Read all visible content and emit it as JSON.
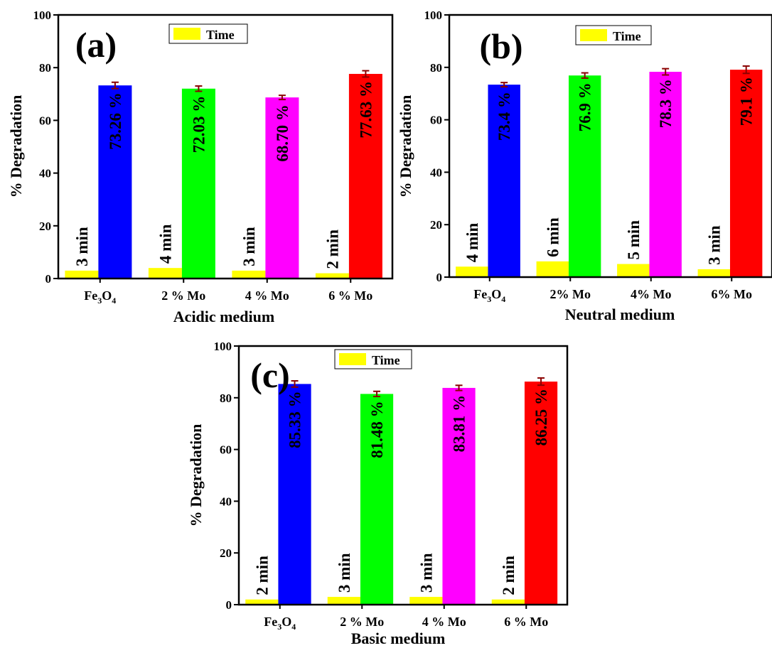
{
  "chart_data": [
    {
      "panel": "(a)",
      "type": "bar",
      "xlabel": "Acidic medium",
      "ylabel": "% Degradation",
      "ylim": [
        0,
        100
      ],
      "yticks": [
        0,
        20,
        40,
        60,
        80,
        100
      ],
      "grid": false,
      "legend": {
        "label": "Time",
        "placement": "top-center"
      },
      "categories": [
        {
          "base": "Fe",
          "sub1": "3",
          "mid": "O",
          "sub2": "4"
        },
        {
          "base": "2 % Mo"
        },
        {
          "base": "4 % Mo"
        },
        {
          "base": "6 % Mo"
        }
      ],
      "series": [
        {
          "name": "Time",
          "color": "#ffff00",
          "values": [
            3,
            4,
            3,
            2
          ],
          "labels": [
            "3 min",
            "4 min",
            "3 min",
            "2 min"
          ]
        },
        {
          "values": [
            73.26,
            72.03,
            68.7,
            77.63
          ],
          "errors": [
            1.2,
            1.0,
            0.8,
            1.2
          ],
          "colors": [
            "#0000ff",
            "#00ff00",
            "#ff00ff",
            "#ff0000"
          ],
          "labels": [
            "73.26 %",
            "72.03 %",
            "68.70 %",
            "77.63 %"
          ]
        }
      ]
    },
    {
      "panel": "(b)",
      "type": "bar",
      "xlabel": "Neutral medium",
      "ylabel": "% Degradation",
      "ylim": [
        0,
        100
      ],
      "yticks": [
        0,
        20,
        40,
        60,
        80,
        100
      ],
      "grid": false,
      "legend": {
        "label": "Time",
        "placement": "top-center"
      },
      "categories": [
        {
          "base": "Fe",
          "sub1": "3",
          "mid": "O",
          "sub2": "4"
        },
        {
          "base": "2% Mo"
        },
        {
          "base": "4% Mo"
        },
        {
          "base": "6% Mo"
        }
      ],
      "series": [
        {
          "name": "Time",
          "color": "#ffff00",
          "values": [
            4,
            6,
            5,
            3
          ],
          "labels": [
            "4 min",
            "6 min",
            "5 min",
            "3 min"
          ]
        },
        {
          "values": [
            73.4,
            76.9,
            78.3,
            79.1
          ],
          "errors": [
            0.8,
            1.0,
            1.2,
            1.4
          ],
          "colors": [
            "#0000ff",
            "#00ff00",
            "#ff00ff",
            "#ff0000"
          ],
          "labels": [
            "73.4 %",
            "76.9 %",
            "78.3 %",
            "79.1 %"
          ]
        }
      ]
    },
    {
      "panel": "(c)",
      "type": "bar",
      "xlabel": "Basic medium",
      "ylabel": "% Degradation",
      "ylim": [
        0,
        100
      ],
      "yticks": [
        0,
        20,
        40,
        60,
        80,
        100
      ],
      "grid": false,
      "legend": {
        "label": "Time",
        "placement": "top-center"
      },
      "categories": [
        {
          "base": "Fe",
          "sub1": "3",
          "mid": "O",
          "sub2": "4"
        },
        {
          "base": "2 % Mo"
        },
        {
          "base": "4 % Mo"
        },
        {
          "base": "6 % Mo"
        }
      ],
      "series": [
        {
          "name": "Time",
          "color": "#ffff00",
          "values": [
            2,
            3,
            3,
            2
          ],
          "labels": [
            "2 min",
            "3 min",
            "3 min",
            "2 min"
          ]
        },
        {
          "values": [
            85.33,
            81.48,
            83.81,
            86.25
          ],
          "errors": [
            1.2,
            1.0,
            1.0,
            1.4
          ],
          "colors": [
            "#0000ff",
            "#00ff00",
            "#ff00ff",
            "#ff0000"
          ],
          "labels": [
            "85.33 %",
            "81.48 %",
            "83.81 %",
            "86.25 %"
          ]
        }
      ]
    }
  ]
}
